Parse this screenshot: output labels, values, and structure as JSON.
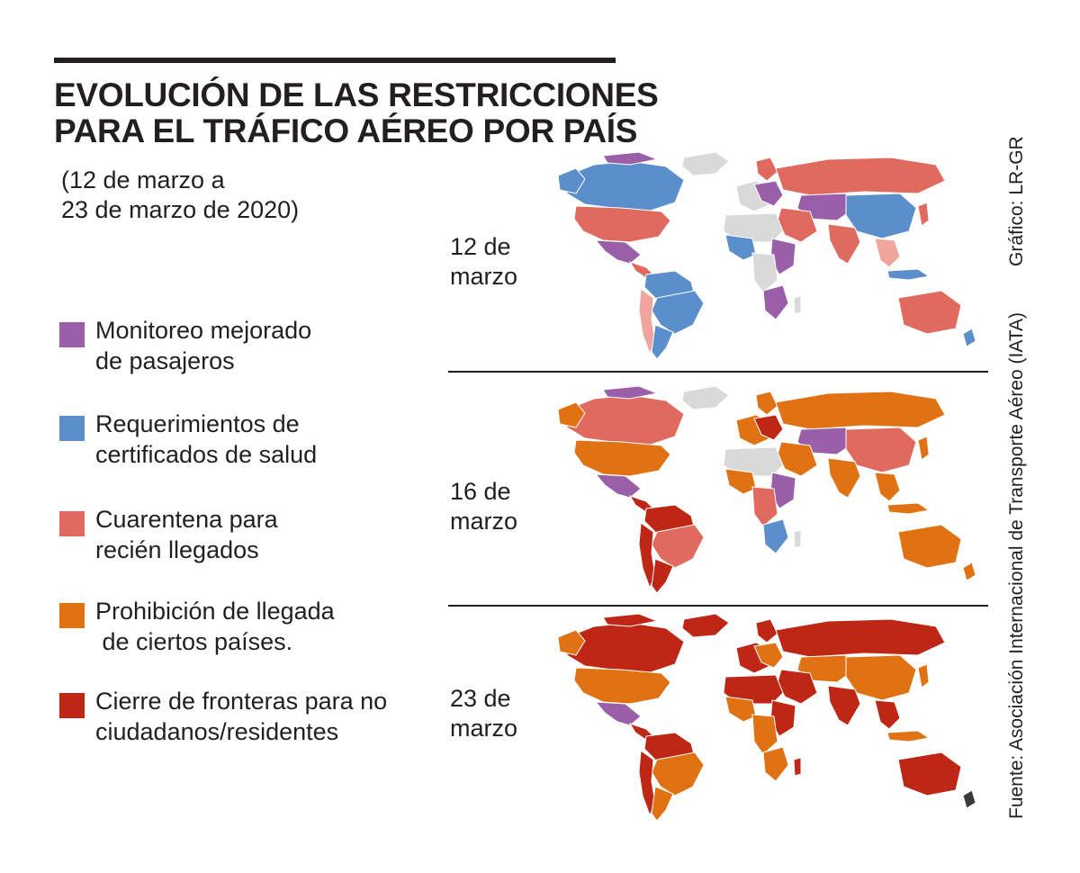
{
  "title": {
    "line1": "EVOLUCIÓN DE LAS RESTRICCIONES",
    "line2": "PARA EL TRÁFICO AÉREO POR PAÍS"
  },
  "subtitle": {
    "line1": "(12 de marzo a",
    "line2": "23 de marzo de 2020)"
  },
  "legend": [
    {
      "line1": "Monitoreo mejorado",
      "line2": "de pasajeros",
      "color": "#9b5ea8"
    },
    {
      "line1": "Requerimientos de",
      "line2": "certificados de salud",
      "color": "#5b8fcc"
    },
    {
      "line1": "Cuarentena para",
      "line2": "recién llegados",
      "color": "#e06a5e"
    },
    {
      "line1": "Prohibición de llegada",
      "line2": " de ciertos países.",
      "color": "#e07213"
    },
    {
      "line1": "Cierre de fronteras para no",
      "line2": "ciudadanos/residentes",
      "color": "#be2616"
    }
  ],
  "maps": [
    {
      "day": "12 de",
      "month": "marzo"
    },
    {
      "day": "16 de",
      "month": "marzo"
    },
    {
      "day": "23 de",
      "month": "marzo"
    }
  ],
  "credit": "Gráfico: LR-GR",
  "source": "Fuente: Asociación Internacional de Transporte Aéreo (IATA)",
  "colors": {
    "no_data": "#d9d9d9",
    "no_data_dark": "#3a3a3a",
    "light_pink": "#f0a59c"
  }
}
